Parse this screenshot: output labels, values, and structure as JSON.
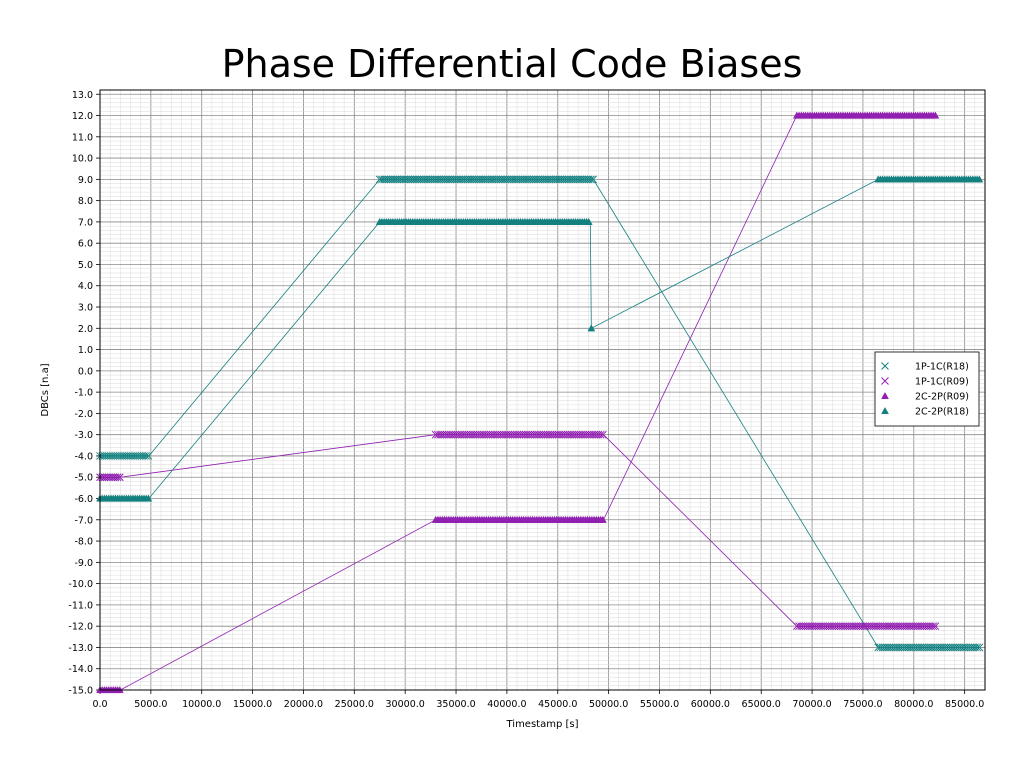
{
  "chart_data": {
    "type": "scatter",
    "title": "Phase Differential Code Biases",
    "xlabel": "Timestamp [s]",
    "ylabel": "DBCs [n.a]",
    "xlim": [
      0,
      87000
    ],
    "ylim": [
      -15.0,
      13.2
    ],
    "grid": true,
    "legend_position": "right",
    "x_ticks": [
      "0.0",
      "5000.0",
      "10000.0",
      "15000.0",
      "20000.0",
      "25000.0",
      "30000.0",
      "35000.0",
      "40000.0",
      "45000.0",
      "50000.0",
      "55000.0",
      "60000.0",
      "65000.0",
      "70000.0",
      "75000.0",
      "80000.0",
      "85000.0"
    ],
    "y_ticks": [
      "13.0",
      "12.0",
      "11.0",
      "10.0",
      "9.0",
      "8.0",
      "7.0",
      "6.0",
      "5.0",
      "4.0",
      "3.0",
      "2.0",
      "1.0",
      "0.0",
      "-1.0",
      "-2.0",
      "-3.0",
      "-4.0",
      "-5.0",
      "-6.0",
      "-7.0",
      "-8.0",
      "-9.0",
      "-10.0",
      "-11.0",
      "-12.0",
      "-13.0",
      "-14.0",
      "-15.0"
    ],
    "series": [
      {
        "name": "1P-1C(R18)",
        "marker": "x",
        "color": "#148080",
        "segments": [
          {
            "x_start": 0,
            "x_end": 4800,
            "y": -4.0
          },
          {
            "x_start": 27500,
            "x_end": 48500,
            "y": 9.0
          },
          {
            "x_start": 76500,
            "x_end": 86500,
            "y": -13.0
          }
        ]
      },
      {
        "name": "1P-1C(R09)",
        "marker": "x",
        "color": "#9020b0",
        "segments": [
          {
            "x_start": 0,
            "x_end": 2000,
            "y": -5.0
          },
          {
            "x_start": 33000,
            "x_end": 49500,
            "y": -3.0
          },
          {
            "x_start": 68500,
            "x_end": 82300,
            "y": -12.0
          }
        ]
      },
      {
        "name": "2C-2P(R09)",
        "marker": "triangle",
        "color": "#9020b0",
        "segments": [
          {
            "x_start": 0,
            "x_end": 2000,
            "y": -15.0
          },
          {
            "x_start": 33000,
            "x_end": 49500,
            "y": -7.0
          },
          {
            "x_start": 68500,
            "x_end": 82300,
            "y": 12.0
          }
        ]
      },
      {
        "name": "2C-2P(R18)",
        "marker": "triangle",
        "color": "#148080",
        "segments": [
          {
            "x_start": 0,
            "x_end": 4800,
            "y": -6.0
          },
          {
            "x_start": 27500,
            "x_end": 48200,
            "y": 7.0
          },
          {
            "x_start": 48300,
            "x_end": 48300,
            "y": 2.0
          },
          {
            "x_start": 76500,
            "x_end": 86500,
            "y": 9.0
          }
        ]
      }
    ]
  }
}
